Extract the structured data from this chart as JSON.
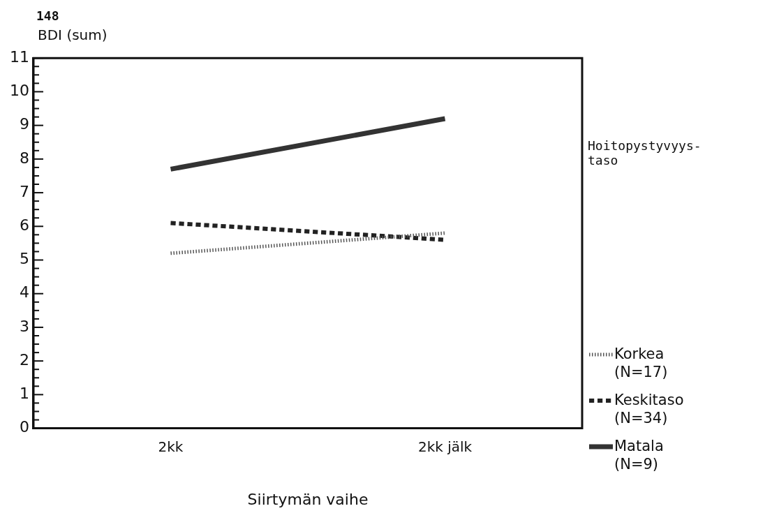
{
  "chart_data": {
    "type": "line",
    "ylabel": "BDI (sum)",
    "xlabel": "Siirtymän vaihe",
    "legend_title": "Hoitopystyvyys-taso",
    "legend": "right",
    "grid": false,
    "marker": "none",
    "annotations": [
      "148"
    ],
    "categories": [
      "2kk",
      "2kk jälk"
    ],
    "ylim": [
      0,
      11
    ],
    "yticks": [
      0,
      {
        "value": 0.25,
        "label": null
      },
      {
        "value": 0.5,
        "label": null
      },
      {
        "value": 0.75,
        "label": null
      },
      1,
      {
        "value": 1.25,
        "label": null
      },
      {
        "value": 1.5,
        "label": null
      },
      {
        "value": 1.75,
        "label": null
      },
      2,
      {
        "value": 2.25,
        "label": null
      },
      {
        "value": 2.5,
        "label": null
      },
      {
        "value": 2.75,
        "label": null
      },
      3,
      {
        "value": 3.25,
        "label": null
      },
      {
        "value": 3.5,
        "label": null
      },
      {
        "value": 3.75,
        "label": null
      },
      4,
      {
        "value": 4.25,
        "label": null
      },
      {
        "value": 4.5,
        "label": null
      },
      {
        "value": 4.75,
        "label": null
      },
      5,
      {
        "value": 5.25,
        "label": null
      },
      {
        "value": 5.5,
        "label": null
      },
      {
        "value": 5.75,
        "label": null
      },
      6,
      {
        "value": 6.25,
        "label": null
      },
      {
        "value": 6.5,
        "label": null
      },
      {
        "value": 6.75,
        "label": null
      },
      7,
      {
        "value": 7.25,
        "label": null
      },
      {
        "value": 7.5,
        "label": null
      },
      {
        "value": 7.75,
        "label": null
      },
      8,
      {
        "value": 8.25,
        "label": null
      },
      {
        "value": 8.5,
        "label": null
      },
      {
        "value": 8.75,
        "label": null
      },
      9,
      {
        "value": 9.25,
        "label": null
      },
      {
        "value": 9.5,
        "label": null
      },
      {
        "value": 9.75,
        "label": null
      },
      10,
      {
        "value": 10.25,
        "label": null
      },
      {
        "value": 10.5,
        "label": null
      },
      {
        "value": 10.75,
        "label": null
      },
      11
    ],
    "series": [
      {
        "name": "Korkea (N=17)",
        "color": "#555555",
        "line_style": "dotted",
        "values": [
          5.2,
          5.8
        ]
      },
      {
        "name": "Keskitaso (N=34)",
        "color": "#222222",
        "line_style": "dashed",
        "values": [
          6.1,
          5.6
        ]
      },
      {
        "name": "Matala (N=9)",
        "color": "#333333",
        "line_style": "solid",
        "values": [
          7.7,
          9.2
        ]
      }
    ]
  }
}
